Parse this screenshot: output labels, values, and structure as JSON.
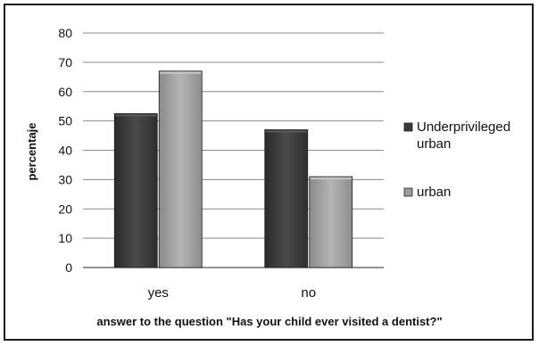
{
  "chart_data": {
    "type": "bar",
    "categories": [
      "yes",
      "no"
    ],
    "series": [
      {
        "name": "Underprivileged urban",
        "values": [
          52.5,
          47
        ],
        "color": "#3a3a3a"
      },
      {
        "name": "urban",
        "values": [
          67,
          31
        ],
        "color": "#9c9c9c"
      }
    ],
    "xlabel": "answer to the question \"Has your child ever visited a dentist?\"",
    "ylabel": "percentaje",
    "ylim": [
      0,
      80
    ],
    "yticks": [
      0,
      10,
      20,
      30,
      40,
      50,
      60,
      70,
      80
    ],
    "grid": true,
    "legend_position": "right"
  }
}
